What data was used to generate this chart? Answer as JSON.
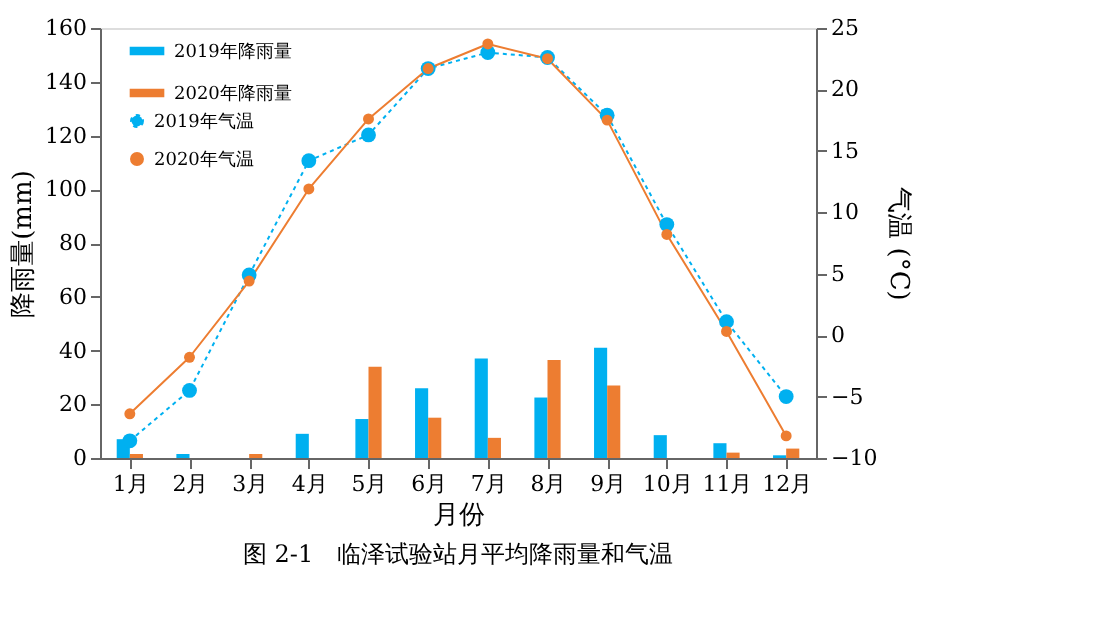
{
  "chart_data": {
    "type": "bar",
    "title": "图 2-1　临泽试验站月平均降雨量和气温",
    "xlabel": "月份",
    "ylabel": "降雨量(mm)",
    "y2label": "气温 (°C)",
    "categories": [
      "1月",
      "2月",
      "3月",
      "4月",
      "5月",
      "6月",
      "7月",
      "8月",
      "9月",
      "10月",
      "11月",
      "12月"
    ],
    "series": [
      {
        "name": "2019年降雨量",
        "color": "#00b0f0",
        "values": [
          7,
          1.5,
          0,
          9,
          14.5,
          26,
          37,
          22.5,
          41,
          8.5,
          5.5,
          1
        ]
      },
      {
        "name": "2020年降雨量",
        "color": "#ed7d31",
        "values": [
          1.5,
          0,
          1.5,
          0,
          34,
          15,
          7.5,
          36.5,
          27,
          0,
          2,
          3.5
        ]
      },
      {
        "name": "2019年气温",
        "color": "#00b0f0",
        "type": "line",
        "axis": "y2",
        "line_style": "dotted",
        "marker": "circle",
        "values": [
          -8.6,
          -4.5,
          4.9,
          14.2,
          16.3,
          21.7,
          23.0,
          22.6,
          17.9,
          9.0,
          1.1,
          -5.0
        ]
      },
      {
        "name": "2020年气温",
        "color": "#ed7d31",
        "type": "line",
        "axis": "y2",
        "line_style": "solid",
        "marker": "circle",
        "values": [
          -6.4,
          -1.8,
          4.4,
          11.9,
          17.6,
          21.7,
          23.7,
          22.5,
          17.5,
          8.2,
          0.3,
          -8.2
        ]
      }
    ],
    "ylim": [
      0,
      160
    ],
    "yticks": [
      0,
      20,
      40,
      60,
      80,
      100,
      120,
      140,
      160
    ],
    "y2lim": [
      -10,
      25
    ],
    "y2ticks": [
      -10,
      -5,
      0,
      5,
      10,
      15,
      20,
      25
    ],
    "grid": false,
    "legend": "top left"
  }
}
